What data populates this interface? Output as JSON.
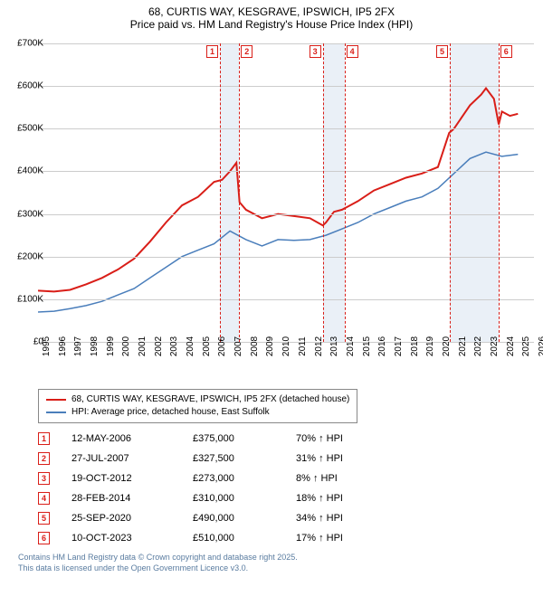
{
  "title": {
    "line1": "68, CURTIS WAY, KESGRAVE, IPSWICH, IP5 2FX",
    "line2": "Price paid vs. HM Land Registry's House Price Index (HPI)"
  },
  "chart": {
    "type": "line",
    "xlim": [
      1995,
      2026
    ],
    "ylim": [
      0,
      700000
    ],
    "ytick_step": 100000,
    "ylabels": [
      "£0",
      "£100K",
      "£200K",
      "£300K",
      "£400K",
      "£500K",
      "£600K",
      "£700K"
    ],
    "xlabels": [
      "1995",
      "1996",
      "1997",
      "1998",
      "1999",
      "2000",
      "2001",
      "2002",
      "2003",
      "2004",
      "2005",
      "2006",
      "2007",
      "2008",
      "2009",
      "2010",
      "2011",
      "2012",
      "2013",
      "2014",
      "2015",
      "2016",
      "2017",
      "2018",
      "2019",
      "2020",
      "2021",
      "2022",
      "2023",
      "2024",
      "2025",
      "2026"
    ],
    "grid_color": "#cccccc",
    "background_color": "#ffffff",
    "shade_color": "#dce6f2",
    "dash_color": "#d91e18",
    "series": [
      {
        "name": "68, CURTIS WAY, KESGRAVE, IPSWICH, IP5 2FX (detached house)",
        "color": "#d91e18",
        "width": 2,
        "points": [
          [
            1995,
            120000
          ],
          [
            1996,
            118000
          ],
          [
            1997,
            122000
          ],
          [
            1998,
            135000
          ],
          [
            1999,
            150000
          ],
          [
            2000,
            170000
          ],
          [
            2001,
            195000
          ],
          [
            2002,
            235000
          ],
          [
            2003,
            280000
          ],
          [
            2004,
            320000
          ],
          [
            2005,
            340000
          ],
          [
            2006,
            375000
          ],
          [
            2006.5,
            380000
          ],
          [
            2007,
            400000
          ],
          [
            2007.4,
            420000
          ],
          [
            2007.6,
            327500
          ],
          [
            2008,
            310000
          ],
          [
            2009,
            290000
          ],
          [
            2010,
            300000
          ],
          [
            2011,
            295000
          ],
          [
            2012,
            290000
          ],
          [
            2012.8,
            273000
          ],
          [
            2013,
            280000
          ],
          [
            2013.5,
            305000
          ],
          [
            2014,
            310000
          ],
          [
            2015,
            330000
          ],
          [
            2016,
            355000
          ],
          [
            2017,
            370000
          ],
          [
            2018,
            385000
          ],
          [
            2019,
            395000
          ],
          [
            2020,
            410000
          ],
          [
            2020.7,
            490000
          ],
          [
            2021,
            500000
          ],
          [
            2022,
            555000
          ],
          [
            2022.7,
            580000
          ],
          [
            2023,
            595000
          ],
          [
            2023.5,
            570000
          ],
          [
            2023.8,
            510000
          ],
          [
            2024,
            540000
          ],
          [
            2024.5,
            530000
          ],
          [
            2025,
            535000
          ]
        ]
      },
      {
        "name": "HPI: Average price, detached house, East Suffolk",
        "color": "#4a7ebb",
        "width": 1.5,
        "points": [
          [
            1995,
            70000
          ],
          [
            1996,
            72000
          ],
          [
            1997,
            78000
          ],
          [
            1998,
            85000
          ],
          [
            1999,
            95000
          ],
          [
            2000,
            110000
          ],
          [
            2001,
            125000
          ],
          [
            2002,
            150000
          ],
          [
            2003,
            175000
          ],
          [
            2004,
            200000
          ],
          [
            2005,
            215000
          ],
          [
            2006,
            230000
          ],
          [
            2007,
            260000
          ],
          [
            2008,
            240000
          ],
          [
            2009,
            225000
          ],
          [
            2010,
            240000
          ],
          [
            2011,
            238000
          ],
          [
            2012,
            240000
          ],
          [
            2013,
            250000
          ],
          [
            2014,
            265000
          ],
          [
            2015,
            280000
          ],
          [
            2016,
            300000
          ],
          [
            2017,
            315000
          ],
          [
            2018,
            330000
          ],
          [
            2019,
            340000
          ],
          [
            2020,
            360000
          ],
          [
            2021,
            395000
          ],
          [
            2022,
            430000
          ],
          [
            2023,
            445000
          ],
          [
            2024,
            435000
          ],
          [
            2025,
            440000
          ]
        ]
      }
    ],
    "markers": [
      {
        "n": "1",
        "x": 2006.37
      },
      {
        "n": "2",
        "x": 2007.57
      },
      {
        "n": "3",
        "x": 2012.8
      },
      {
        "n": "4",
        "x": 2014.16
      },
      {
        "n": "5",
        "x": 2020.74
      },
      {
        "n": "6",
        "x": 2023.78
      }
    ],
    "shade_bands": [
      [
        2006.37,
        2007.57
      ],
      [
        2012.8,
        2014.16
      ],
      [
        2020.74,
        2023.78
      ]
    ]
  },
  "legend": [
    {
      "color": "#d91e18",
      "label": "68, CURTIS WAY, KESGRAVE, IPSWICH, IP5 2FX (detached house)"
    },
    {
      "color": "#4a7ebb",
      "label": "HPI: Average price, detached house, East Suffolk"
    }
  ],
  "table": [
    {
      "n": "1",
      "date": "12-MAY-2006",
      "price": "£375,000",
      "pct": "70% ↑ HPI"
    },
    {
      "n": "2",
      "date": "27-JUL-2007",
      "price": "£327,500",
      "pct": "31% ↑ HPI"
    },
    {
      "n": "3",
      "date": "19-OCT-2012",
      "price": "£273,000",
      "pct": "8% ↑ HPI"
    },
    {
      "n": "4",
      "date": "28-FEB-2014",
      "price": "£310,000",
      "pct": "18% ↑ HPI"
    },
    {
      "n": "5",
      "date": "25-SEP-2020",
      "price": "£490,000",
      "pct": "34% ↑ HPI"
    },
    {
      "n": "6",
      "date": "10-OCT-2023",
      "price": "£510,000",
      "pct": "17% ↑ HPI"
    }
  ],
  "footer": {
    "line1": "Contains HM Land Registry data © Crown copyright and database right 2025.",
    "line2": "This data is licensed under the Open Government Licence v3.0."
  }
}
